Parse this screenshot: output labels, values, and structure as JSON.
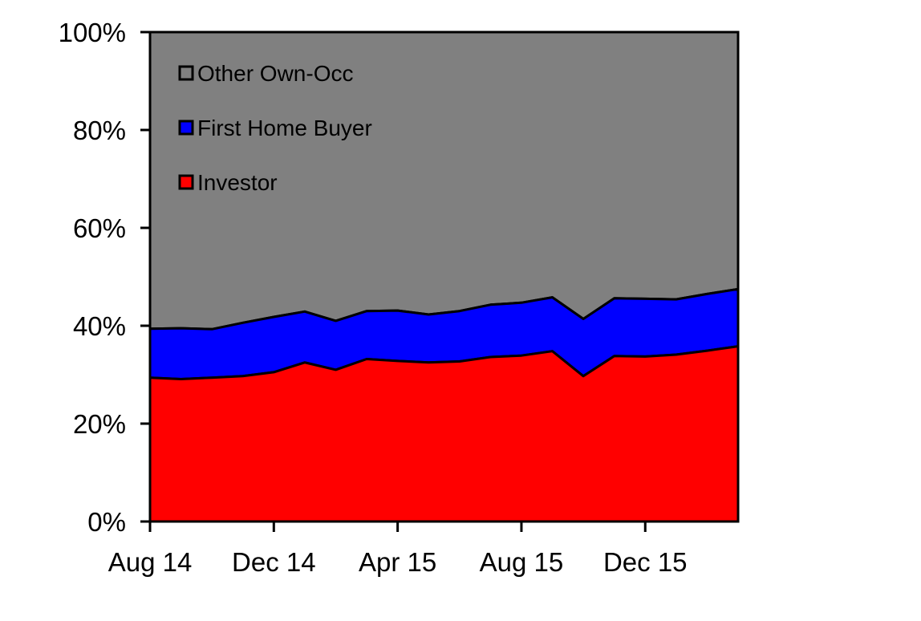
{
  "chart_data": {
    "type": "area",
    "stacked": true,
    "percent_stacked": true,
    "x": [
      "Aug 14",
      "Sep 14",
      "Oct 14",
      "Nov 14",
      "Dec 14",
      "Jan 15",
      "Feb 15",
      "Mar 15",
      "Apr 15",
      "May 15",
      "Jun 15",
      "Jul 15",
      "Aug 15",
      "Sep 15",
      "Oct 15",
      "Nov 15",
      "Dec 15",
      "Jan 16",
      "Feb 16",
      "Mar 16"
    ],
    "x_tick_labels": [
      "Aug 14",
      "Dec 14",
      "Apr 15",
      "Aug 15",
      "Dec 15"
    ],
    "ylim": [
      0,
      100
    ],
    "y_ticks": [
      0,
      20,
      40,
      60,
      80,
      100
    ],
    "y_tick_labels": [
      "0%",
      "20%",
      "40%",
      "60%",
      "80%",
      "100%"
    ],
    "title": "",
    "xlabel": "",
    "ylabel": "",
    "grid": false,
    "legend_position": "top-left",
    "series": [
      {
        "name": "Investor",
        "color": "#ff0000",
        "values": [
          29.4,
          29.1,
          29.4,
          29.7,
          30.5,
          32.5,
          31.0,
          33.2,
          32.8,
          32.5,
          32.7,
          33.6,
          33.9,
          34.8,
          29.7,
          33.8,
          33.7,
          34.1,
          34.9,
          35.8
        ]
      },
      {
        "name": "First Home Buyer",
        "color": "#0000ff",
        "values": [
          10.0,
          10.4,
          9.9,
          10.9,
          11.3,
          10.4,
          10.0,
          9.8,
          10.3,
          9.8,
          10.3,
          10.7,
          10.8,
          11.0,
          11.7,
          11.8,
          11.8,
          11.3,
          11.6,
          11.7
        ]
      },
      {
        "name": "Other Own-Occ",
        "color": "#808080",
        "values": [
          60.6,
          60.5,
          60.7,
          59.4,
          58.2,
          57.1,
          59.0,
          57.0,
          56.9,
          57.7,
          57.0,
          55.7,
          55.3,
          54.2,
          58.6,
          54.4,
          54.5,
          54.6,
          53.5,
          52.5
        ]
      }
    ]
  }
}
